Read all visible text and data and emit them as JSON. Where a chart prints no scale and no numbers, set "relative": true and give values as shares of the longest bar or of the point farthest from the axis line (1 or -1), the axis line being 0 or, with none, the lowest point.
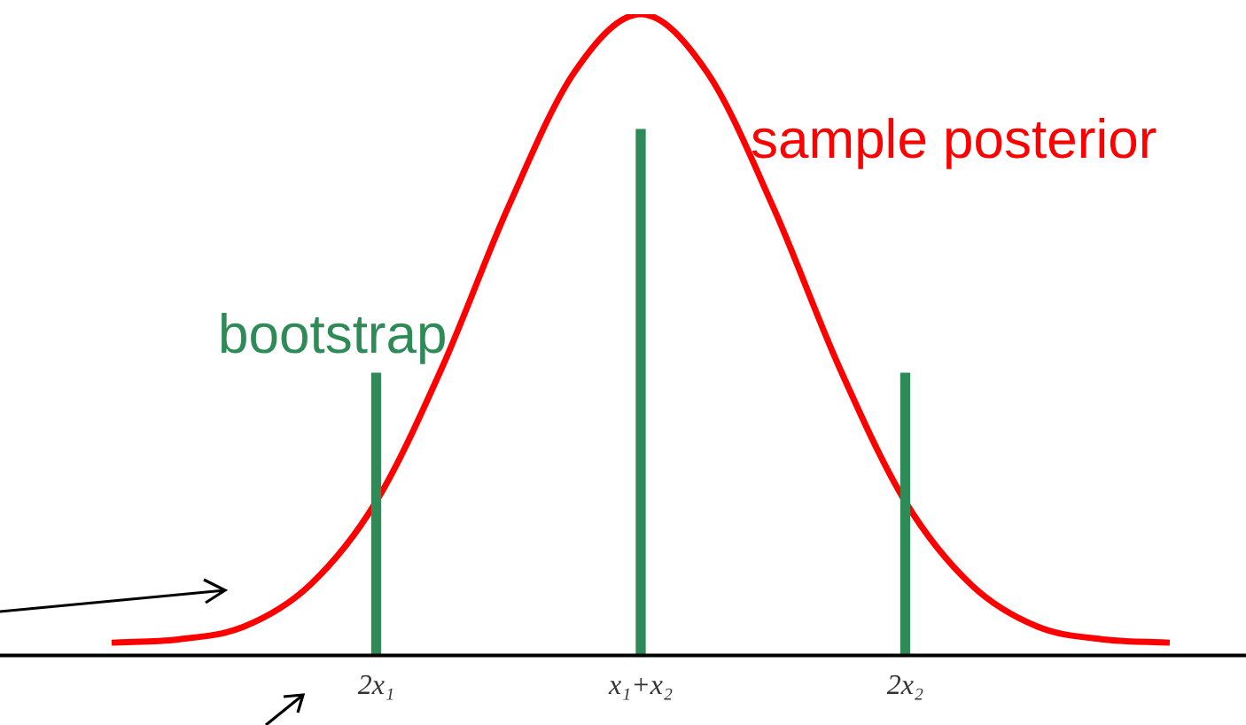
{
  "chart_data": {
    "type": "line",
    "relative": true,
    "grid": false,
    "legend": false,
    "marker": "none",
    "tick_labels": "x",
    "categories": [
      null,
      null,
      null,
      null,
      "2x₁",
      null,
      null,
      null,
      "x₁+x₂",
      null,
      null,
      null,
      "2x₂",
      null,
      null,
      null,
      null
    ],
    "series": [
      {
        "name": "sample posterior",
        "color": "#ff0000",
        "values": [
          0.02,
          0.025,
          0.045,
          0.11,
          0.24,
          0.45,
          0.7,
          0.91,
          1,
          0.91,
          0.7,
          0.45,
          0.24,
          0.11,
          0.045,
          0.025,
          0.02
        ]
      },
      {
        "name": "bootstrap",
        "type": "bar",
        "color": "#2e8b57",
        "values": [
          null,
          null,
          null,
          null,
          0.44,
          null,
          null,
          null,
          0.82,
          null,
          null,
          null,
          0.44,
          null,
          null,
          null,
          null
        ]
      }
    ]
  }
}
